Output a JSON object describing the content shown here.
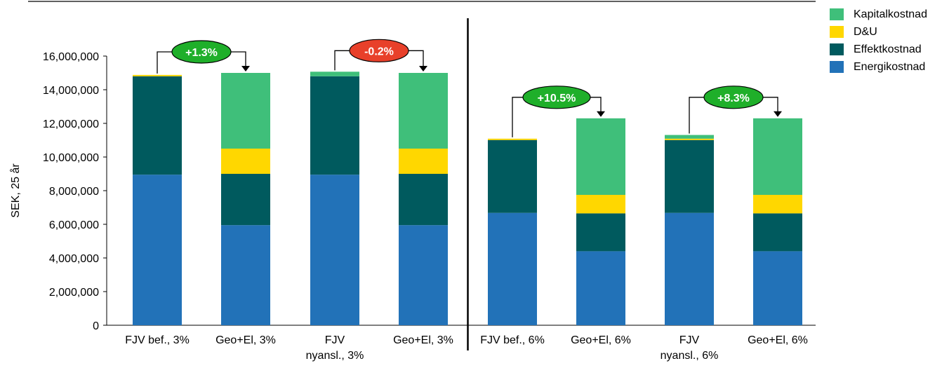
{
  "chart_data": {
    "type": "bar",
    "stacked": true,
    "ylabel": "SEK, 25 år",
    "ylim": [
      0,
      16000000
    ],
    "ytick_step": 2000000,
    "yticks": [
      "0",
      "2,000,000",
      "4,000,000",
      "6,000,000",
      "8,000,000",
      "10,000,000",
      "12,000,000",
      "14,000,000",
      "16,000,000"
    ],
    "categories": [
      [
        "FJV bef., 3%"
      ],
      [
        "Geo+El, 3%"
      ],
      [
        "FJV",
        "nyansl., 3%"
      ],
      [
        "Geo+El, 3%"
      ],
      [
        "FJV bef., 6%"
      ],
      [
        "Geo+El, 6%"
      ],
      [
        "FJV",
        "nyansl., 6%"
      ],
      [
        "Geo+El, 6%"
      ]
    ],
    "series": [
      {
        "name": "Energikostnad",
        "color": "#2272B8",
        "values": [
          8950000,
          5950000,
          8950000,
          5950000,
          6680000,
          4400000,
          6680000,
          4400000
        ]
      },
      {
        "name": "Effektkostnad",
        "color": "#005A5E",
        "values": [
          5850000,
          3050000,
          5850000,
          3050000,
          4330000,
          2250000,
          4330000,
          2250000
        ]
      },
      {
        "name": "D&U",
        "color": "#FFD700",
        "values": [
          80000,
          1500000,
          0,
          1500000,
          80000,
          1100000,
          80000,
          1100000
        ]
      },
      {
        "name": "Kapitalkostnad",
        "color": "#3FBF7A",
        "values": [
          0,
          4500000,
          270000,
          4500000,
          0,
          4550000,
          220000,
          4550000
        ]
      }
    ],
    "legend_order": [
      "Kapitalkostnad",
      "D&U",
      "Effektkostnad",
      "Energikostnad"
    ],
    "legend_position": "top-right",
    "annotations": [
      {
        "text": "+1.3%",
        "from": 0,
        "to": 1,
        "color": "#1FAF2A"
      },
      {
        "text": "-0.2%",
        "from": 2,
        "to": 3,
        "color": "#E8402A"
      },
      {
        "text": "+10.5%",
        "from": 4,
        "to": 5,
        "color": "#1FAF2A"
      },
      {
        "text": "+8.3%",
        "from": 6,
        "to": 7,
        "color": "#1FAF2A"
      }
    ],
    "divider_after_category": 3
  }
}
